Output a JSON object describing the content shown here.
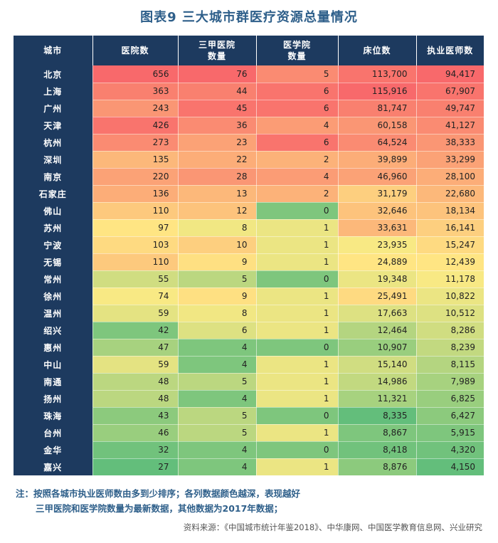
{
  "title": "图表9  三大城市群医疗资源总量情况",
  "notes": [
    "注：按照各城市执业医师数由多到少排序；各列数据颜色越深，表现越好",
    "三甲医院和医学院数量为最新数据，其他数据为2017年数据；"
  ],
  "source": "资料来源：《中国城市统计年鉴2018》、中华康网、中国医学教育信息网、兴业研究",
  "chart_data": {
    "type": "table",
    "columns": [
      {
        "key": "city",
        "label": "城市"
      },
      {
        "key": "hospitals",
        "label": "医院数"
      },
      {
        "key": "top_hospitals",
        "label": "三甲医院\n数量"
      },
      {
        "key": "med_schools",
        "label": "医学院\n数量"
      },
      {
        "key": "beds",
        "label": "床位数"
      },
      {
        "key": "doctors",
        "label": "执业医师数"
      }
    ],
    "rows": [
      {
        "city": "北京",
        "hospitals": 656,
        "top_hospitals": 76,
        "med_schools": 5,
        "beds": 113700,
        "doctors": 94417
      },
      {
        "city": "上海",
        "hospitals": 363,
        "top_hospitals": 44,
        "med_schools": 6,
        "beds": 115916,
        "doctors": 67907
      },
      {
        "city": "广州",
        "hospitals": 243,
        "top_hospitals": 45,
        "med_schools": 6,
        "beds": 81747,
        "doctors": 49747
      },
      {
        "city": "天津",
        "hospitals": 426,
        "top_hospitals": 36,
        "med_schools": 4,
        "beds": 60158,
        "doctors": 41127
      },
      {
        "city": "杭州",
        "hospitals": 273,
        "top_hospitals": 23,
        "med_schools": 6,
        "beds": 64524,
        "doctors": 38333
      },
      {
        "city": "深圳",
        "hospitals": 135,
        "top_hospitals": 22,
        "med_schools": 2,
        "beds": 39899,
        "doctors": 33299
      },
      {
        "city": "南京",
        "hospitals": 220,
        "top_hospitals": 28,
        "med_schools": 4,
        "beds": 46960,
        "doctors": 28100
      },
      {
        "city": "石家庄",
        "hospitals": 136,
        "top_hospitals": 13,
        "med_schools": 2,
        "beds": 31179,
        "doctors": 22680
      },
      {
        "city": "佛山",
        "hospitals": 110,
        "top_hospitals": 12,
        "med_schools": 0,
        "beds": 32646,
        "doctors": 18134
      },
      {
        "city": "苏州",
        "hospitals": 97,
        "top_hospitals": 8,
        "med_schools": 1,
        "beds": 33631,
        "doctors": 16141
      },
      {
        "city": "宁波",
        "hospitals": 103,
        "top_hospitals": 10,
        "med_schools": 1,
        "beds": 23935,
        "doctors": 15247
      },
      {
        "city": "无锡",
        "hospitals": 110,
        "top_hospitals": 9,
        "med_schools": 1,
        "beds": 24889,
        "doctors": 12439
      },
      {
        "city": "常州",
        "hospitals": 55,
        "top_hospitals": 5,
        "med_schools": 0,
        "beds": 19348,
        "doctors": 11178
      },
      {
        "city": "徐州",
        "hospitals": 74,
        "top_hospitals": 9,
        "med_schools": 1,
        "beds": 25491,
        "doctors": 10822
      },
      {
        "city": "温州",
        "hospitals": 59,
        "top_hospitals": 8,
        "med_schools": 1,
        "beds": 17663,
        "doctors": 10512
      },
      {
        "city": "绍兴",
        "hospitals": 42,
        "top_hospitals": 6,
        "med_schools": 1,
        "beds": 12464,
        "doctors": 8286
      },
      {
        "city": "惠州",
        "hospitals": 47,
        "top_hospitals": 4,
        "med_schools": 0,
        "beds": 10907,
        "doctors": 8239
      },
      {
        "city": "中山",
        "hospitals": 59,
        "top_hospitals": 4,
        "med_schools": 1,
        "beds": 15140,
        "doctors": 8115
      },
      {
        "city": "南通",
        "hospitals": 48,
        "top_hospitals": 5,
        "med_schools": 1,
        "beds": 14986,
        "doctors": 7989
      },
      {
        "city": "扬州",
        "hospitals": 48,
        "top_hospitals": 4,
        "med_schools": 1,
        "beds": 11321,
        "doctors": 6825
      },
      {
        "city": "珠海",
        "hospitals": 43,
        "top_hospitals": 5,
        "med_schools": 0,
        "beds": 8335,
        "doctors": 6427
      },
      {
        "city": "台州",
        "hospitals": 46,
        "top_hospitals": 5,
        "med_schools": 1,
        "beds": 8867,
        "doctors": 5915
      },
      {
        "city": "金华",
        "hospitals": 32,
        "top_hospitals": 4,
        "med_schools": 0,
        "beds": 8418,
        "doctors": 4320
      },
      {
        "city": "嘉兴",
        "hospitals": 27,
        "top_hospitals": 4,
        "med_schools": 1,
        "beds": 8876,
        "doctors": 4150
      }
    ],
    "color_scale": {
      "low": "#63be7b",
      "mid": "#ffeb84",
      "high": "#f8696b"
    }
  }
}
